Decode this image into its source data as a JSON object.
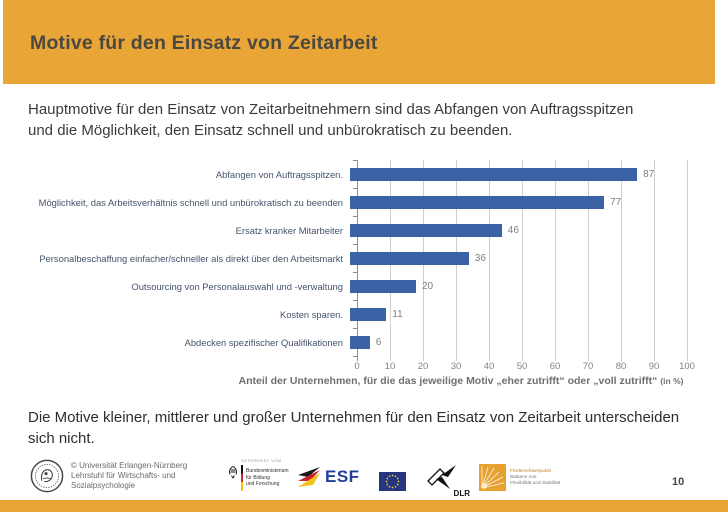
{
  "slide": {
    "title": "Motive für den Einsatz von Zeitarbeit",
    "subtitle_lines": [
      "Hauptmotive für den Einsatz von Zeitarbeitnehmern sind das Abfangen von Auftragsspitzen",
      "und die Möglichkeit, den Einsatz schnell und unbürokratisch zu beenden."
    ],
    "note_lines": [
      "Die Motive kleiner, mittlerer und großer Unternehmen für den Einsatz von Zeitarbeit unterscheiden",
      "sich nicht."
    ],
    "page_number": "10"
  },
  "chart_data": {
    "type": "bar",
    "orientation": "horizontal",
    "categories": [
      "Abfangen von Auftragsspitzen.",
      "Möglichkeit, das Arbeitsverhältnis schnell und unbürokratisch zu beenden",
      "Ersatz kranker Mitarbeiter",
      "Personalbeschaffung einfacher/schneller als direkt über den Arbeitsmarkt",
      "Outsourcing von Personalauswahl und -verwaltung",
      "Kosten sparen.",
      "Abdecken spezifischer Qualifikationen"
    ],
    "values": [
      87,
      77,
      46,
      36,
      20,
      11,
      6
    ],
    "xlabel": "Anteil der Unternehmen, für die das jeweilige Motiv „eher zutrifft“ oder „voll zutrifft“",
    "xlabel_suffix": "(in %)",
    "xlim": [
      0,
      100
    ],
    "xticks": [
      0,
      10,
      20,
      30,
      40,
      50,
      60,
      70,
      80,
      90,
      100
    ],
    "grid": true,
    "legend": false,
    "bar_color": "#3A62A5"
  },
  "footer": {
    "university": {
      "lines": [
        "© Universität Erlangen-Nürnberg",
        "Lehrstuhl für Wirtschafts- und",
        "Sozialpsychologie"
      ]
    },
    "bmbf": {
      "header": "GEFÖRDERT VOM",
      "lines": [
        "Bundesministerium",
        "für Bildung",
        "und Forschung"
      ]
    },
    "esf_label": "ESF",
    "dlr_label": "DLR",
    "foerderschwerpunkt": {
      "lines": [
        "Förderschwerpunkt",
        "Balance von",
        "Flexibilität und Stabilität"
      ]
    }
  },
  "colors": {
    "accent_gold": "#E9A637",
    "bar_blue": "#3A62A5",
    "category_label": "#44546A",
    "value_gray": "#7F7F7F"
  }
}
